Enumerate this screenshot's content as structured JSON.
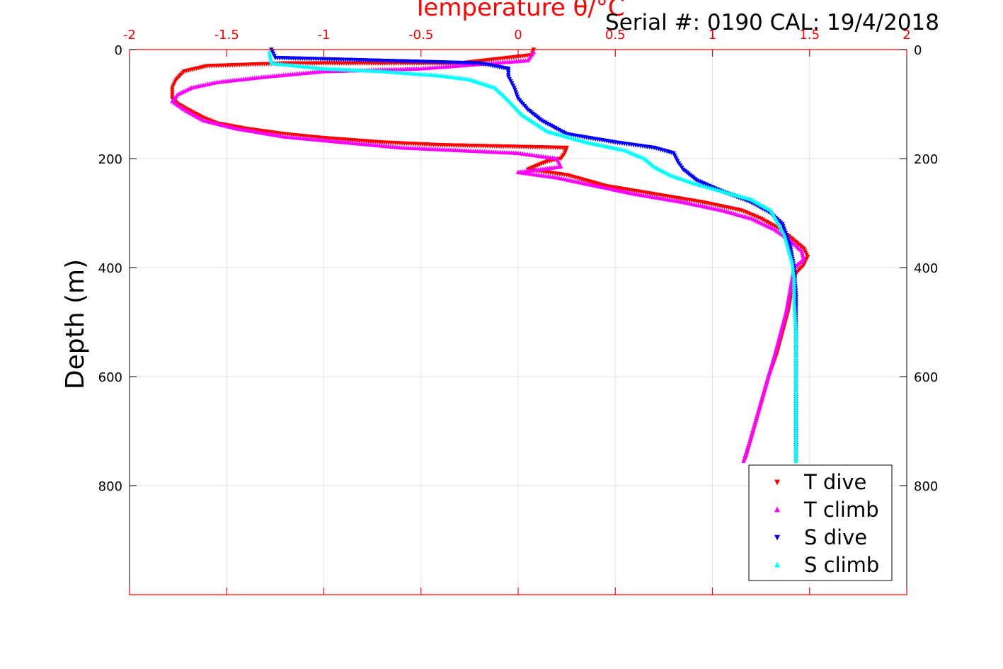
{
  "chart_data": {
    "type": "scatter",
    "title": "Temperature θ/°C",
    "annotation": "Serial #: 0190  CAL: 19/4/2018",
    "xlabel": "Temperature θ/°C",
    "ylabel": "Depth (m)",
    "xlim": [
      -2,
      2
    ],
    "ylim": [
      1000,
      0
    ],
    "x_ticks": [
      "-2",
      "-1.5",
      "-1",
      "-0.5",
      "0",
      "0.5",
      "1",
      "1.5",
      "2"
    ],
    "y_ticks": [
      "0",
      "200",
      "400",
      "600",
      "800"
    ],
    "grid": true,
    "legend_position": "bottom-right",
    "colors": {
      "axis_top": "#ff0000",
      "t_dive": "#ff0000",
      "t_climb": "#ff00ff",
      "s_dive": "#0000ff",
      "s_climb": "#00ffff"
    },
    "series": [
      {
        "name": "T dive",
        "marker": "triangle-down",
        "color": "#ff0000",
        "points": [
          [
            0.08,
            0
          ],
          [
            0.07,
            10
          ],
          [
            -0.3,
            25
          ],
          [
            -1.2,
            25
          ],
          [
            -1.6,
            30
          ],
          [
            -1.72,
            40
          ],
          [
            -1.76,
            55
          ],
          [
            -1.78,
            70
          ],
          [
            -1.78,
            90
          ],
          [
            -1.75,
            100
          ],
          [
            -1.7,
            110
          ],
          [
            -1.62,
            125
          ],
          [
            -1.55,
            135
          ],
          [
            -1.4,
            145
          ],
          [
            -1.2,
            155
          ],
          [
            -1.0,
            162
          ],
          [
            -0.7,
            170
          ],
          [
            -0.4,
            175
          ],
          [
            0.25,
            180
          ],
          [
            0.24,
            190
          ],
          [
            0.22,
            200
          ],
          [
            0.15,
            205
          ],
          [
            0.1,
            212
          ],
          [
            0.05,
            220
          ],
          [
            0.25,
            230
          ],
          [
            0.45,
            250
          ],
          [
            0.7,
            265
          ],
          [
            0.95,
            280
          ],
          [
            1.15,
            295
          ],
          [
            1.25,
            310
          ],
          [
            1.35,
            330
          ],
          [
            1.42,
            350
          ],
          [
            1.47,
            365
          ],
          [
            1.49,
            380
          ],
          [
            1.47,
            395
          ],
          [
            1.43,
            410
          ],
          [
            1.41,
            440
          ],
          [
            1.39,
            480
          ],
          [
            1.36,
            520
          ],
          [
            1.33,
            560
          ],
          [
            1.29,
            600
          ],
          [
            1.25,
            650
          ],
          [
            1.21,
            700
          ],
          [
            1.17,
            750
          ]
        ]
      },
      {
        "name": "T climb",
        "marker": "triangle-up",
        "color": "#ff00ff",
        "points": [
          [
            0.08,
            5
          ],
          [
            0.05,
            20
          ],
          [
            -0.5,
            35
          ],
          [
            -1.0,
            40
          ],
          [
            -1.3,
            50
          ],
          [
            -1.55,
            60
          ],
          [
            -1.68,
            70
          ],
          [
            -1.75,
            82
          ],
          [
            -1.78,
            95
          ],
          [
            -1.72,
            110
          ],
          [
            -1.62,
            130
          ],
          [
            -1.45,
            145
          ],
          [
            -1.2,
            160
          ],
          [
            -0.9,
            170
          ],
          [
            -0.6,
            180
          ],
          [
            -0.3,
            185
          ],
          [
            0.0,
            190
          ],
          [
            0.2,
            200
          ],
          [
            0.22,
            215
          ],
          [
            0.0,
            225
          ],
          [
            0.2,
            235
          ],
          [
            0.4,
            250
          ],
          [
            0.6,
            265
          ],
          [
            0.85,
            280
          ],
          [
            1.05,
            295
          ],
          [
            1.2,
            310
          ],
          [
            1.32,
            330
          ],
          [
            1.4,
            350
          ],
          [
            1.46,
            370
          ],
          [
            1.47,
            385
          ],
          [
            1.42,
            400
          ],
          [
            1.4,
            440
          ],
          [
            1.38,
            480
          ],
          [
            1.35,
            520
          ],
          [
            1.32,
            560
          ],
          [
            1.28,
            610
          ],
          [
            1.24,
            660
          ],
          [
            1.2,
            710
          ],
          [
            1.16,
            755
          ]
        ]
      },
      {
        "name": "S dive",
        "marker": "triangle-down",
        "color": "#0000ff",
        "points": [
          [
            -1.27,
            0
          ],
          [
            -1.25,
            15
          ],
          [
            -0.2,
            25
          ],
          [
            -0.05,
            35
          ],
          [
            -0.05,
            50
          ],
          [
            -0.02,
            70
          ],
          [
            0.0,
            90
          ],
          [
            0.05,
            110
          ],
          [
            0.12,
            130
          ],
          [
            0.25,
            155
          ],
          [
            0.5,
            170
          ],
          [
            0.7,
            180
          ],
          [
            0.8,
            190
          ],
          [
            0.82,
            205
          ],
          [
            0.85,
            220
          ],
          [
            0.92,
            240
          ],
          [
            1.05,
            260
          ],
          [
            1.2,
            280
          ],
          [
            1.3,
            300
          ],
          [
            1.36,
            320
          ],
          [
            1.38,
            340
          ],
          [
            1.4,
            360
          ],
          [
            1.41,
            380
          ],
          [
            1.42,
            400
          ],
          [
            1.43,
            450
          ],
          [
            1.43,
            500
          ],
          [
            1.43,
            550
          ],
          [
            1.43,
            600
          ],
          [
            1.43,
            650
          ],
          [
            1.43,
            700
          ],
          [
            1.43,
            755
          ]
        ]
      },
      {
        "name": "S climb",
        "marker": "triangle-up",
        "color": "#00ffff",
        "points": [
          [
            -1.28,
            5
          ],
          [
            -1.27,
            25
          ],
          [
            -1.0,
            35
          ],
          [
            -0.7,
            40
          ],
          [
            -0.4,
            48
          ],
          [
            -0.25,
            55
          ],
          [
            -0.12,
            70
          ],
          [
            -0.06,
            90
          ],
          [
            0.02,
            120
          ],
          [
            0.15,
            150
          ],
          [
            0.35,
            170
          ],
          [
            0.55,
            185
          ],
          [
            0.65,
            200
          ],
          [
            0.7,
            215
          ],
          [
            0.78,
            230
          ],
          [
            0.9,
            245
          ],
          [
            1.05,
            260
          ],
          [
            1.2,
            275
          ],
          [
            1.3,
            295
          ],
          [
            1.34,
            320
          ],
          [
            1.37,
            340
          ],
          [
            1.39,
            365
          ],
          [
            1.41,
            390
          ],
          [
            1.42,
            420
          ],
          [
            1.42,
            460
          ],
          [
            1.43,
            520
          ],
          [
            1.43,
            600
          ],
          [
            1.43,
            680
          ],
          [
            1.43,
            755
          ]
        ]
      }
    ]
  }
}
